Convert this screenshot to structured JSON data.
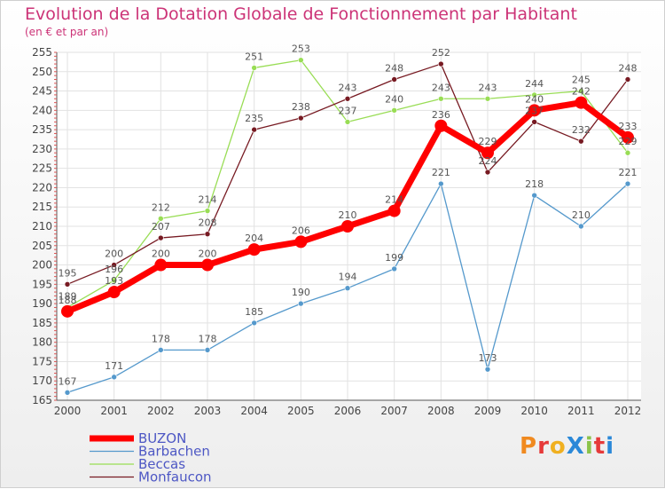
{
  "chart_data": {
    "type": "line",
    "title": "Evolution de la Dotation Globale de Fonctionnement par Habitant",
    "subtitle": "(en € et par an)",
    "x": [
      "2000",
      "2001",
      "2002",
      "2003",
      "2004",
      "2005",
      "2006",
      "2007",
      "2008",
      "2009",
      "2010",
      "2011",
      "2012"
    ],
    "ylim": [
      165,
      255
    ],
    "ytick_step": 5,
    "grid": true,
    "legend_position": "bottom-left",
    "series": [
      {
        "name": "BUZON",
        "color": "#ff0000",
        "values": [
          188,
          193,
          200,
          200,
          204,
          206,
          210,
          214,
          236,
          229,
          240,
          242,
          233
        ]
      },
      {
        "name": "Barbachen",
        "color": "#5599cc",
        "values": [
          167,
          171,
          178,
          178,
          185,
          190,
          194,
          199,
          221,
          173,
          218,
          210,
          221
        ]
      },
      {
        "name": "Beccas",
        "color": "#99dd55",
        "values": [
          189,
          196,
          212,
          214,
          251,
          253,
          237,
          240,
          243,
          243,
          244,
          245,
          229
        ]
      },
      {
        "name": "Monfaucon",
        "color": "#771a22",
        "values": [
          195,
          200,
          207,
          208,
          235,
          238,
          243,
          248,
          252,
          224,
          237,
          232,
          248
        ]
      }
    ]
  },
  "logo": {
    "text": "ProXiti"
  }
}
